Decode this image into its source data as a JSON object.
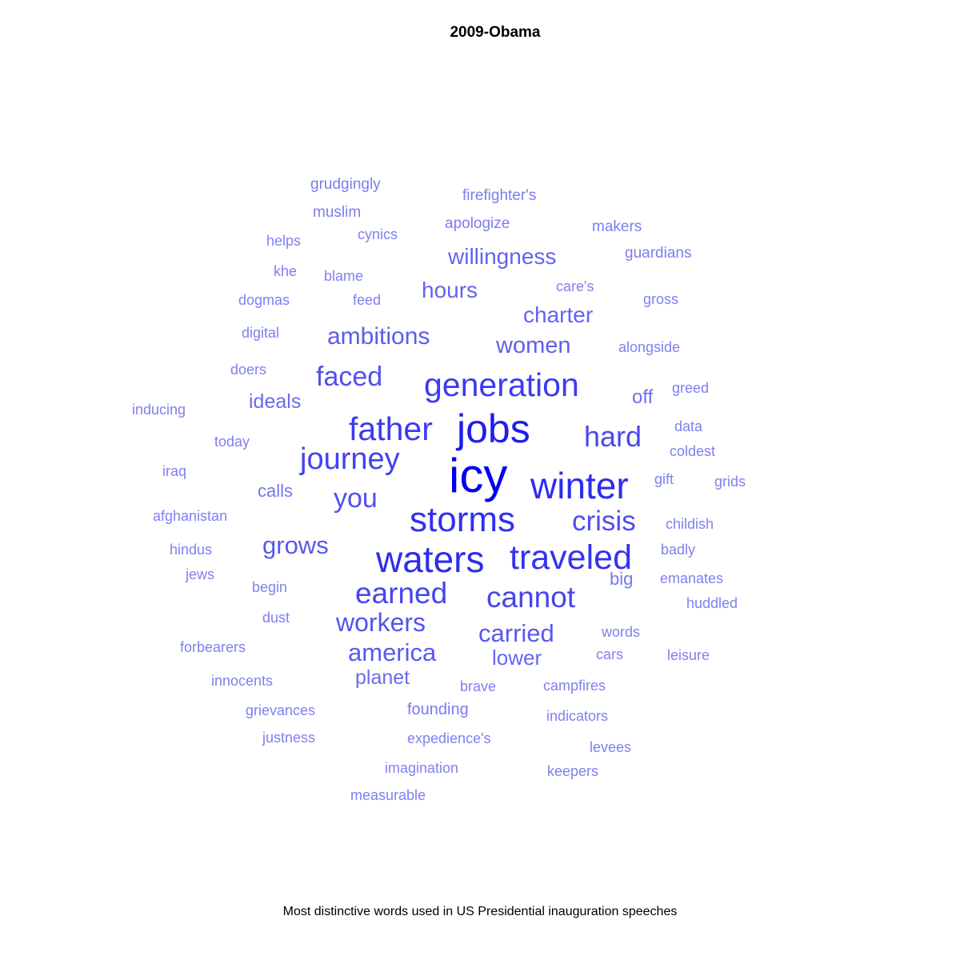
{
  "chart_data": {
    "type": "wordcloud",
    "title": "2009-Obama",
    "caption": "Most distinctive words used in US Presidential inauguration speeches",
    "color_scale": {
      "low": "#8080f0",
      "high": "#0000ee"
    },
    "words": [
      {
        "text": "icy",
        "weight": 1.0
      },
      {
        "text": "jobs",
        "weight": 0.84
      },
      {
        "text": "waters",
        "weight": 0.76
      },
      {
        "text": "winter",
        "weight": 0.76
      },
      {
        "text": "storms",
        "weight": 0.74
      },
      {
        "text": "traveled",
        "weight": 0.72
      },
      {
        "text": "father",
        "weight": 0.68
      },
      {
        "text": "generation",
        "weight": 0.68
      },
      {
        "text": "journey",
        "weight": 0.64
      },
      {
        "text": "earned",
        "weight": 0.62
      },
      {
        "text": "cannot",
        "weight": 0.62
      },
      {
        "text": "hard",
        "weight": 0.6
      },
      {
        "text": "crisis",
        "weight": 0.58
      },
      {
        "text": "faced",
        "weight": 0.56
      },
      {
        "text": "you",
        "weight": 0.56
      },
      {
        "text": "workers",
        "weight": 0.54
      },
      {
        "text": "america",
        "weight": 0.52
      },
      {
        "text": "carried",
        "weight": 0.52
      },
      {
        "text": "grows",
        "weight": 0.52
      },
      {
        "text": "ambitions",
        "weight": 0.5
      },
      {
        "text": "women",
        "weight": 0.48
      },
      {
        "text": "willingness",
        "weight": 0.46
      },
      {
        "text": "hours",
        "weight": 0.46
      },
      {
        "text": "charter",
        "weight": 0.46
      },
      {
        "text": "lower",
        "weight": 0.44
      },
      {
        "text": "ideals",
        "weight": 0.42
      },
      {
        "text": "planet",
        "weight": 0.42
      },
      {
        "text": "off",
        "weight": 0.4
      },
      {
        "text": "calls",
        "weight": 0.36
      },
      {
        "text": "big",
        "weight": 0.36
      },
      {
        "text": "founding",
        "weight": 0.34
      },
      {
        "text": "grudgingly",
        "weight": 0.32
      },
      {
        "text": "firefighter's",
        "weight": 0.32
      },
      {
        "text": "muslim",
        "weight": 0.32
      },
      {
        "text": "apologize",
        "weight": 0.32
      },
      {
        "text": "makers",
        "weight": 0.32
      },
      {
        "text": "cynics",
        "weight": 0.3
      },
      {
        "text": "helps",
        "weight": 0.3
      },
      {
        "text": "guardians",
        "weight": 0.32
      },
      {
        "text": "khe",
        "weight": 0.3
      },
      {
        "text": "blame",
        "weight": 0.3
      },
      {
        "text": "care's",
        "weight": 0.3
      },
      {
        "text": "dogmas",
        "weight": 0.3
      },
      {
        "text": "feed",
        "weight": 0.3
      },
      {
        "text": "gross",
        "weight": 0.3
      },
      {
        "text": "digital",
        "weight": 0.3
      },
      {
        "text": "alongside",
        "weight": 0.3
      },
      {
        "text": "doers",
        "weight": 0.3
      },
      {
        "text": "greed",
        "weight": 0.3
      },
      {
        "text": "inducing",
        "weight": 0.3
      },
      {
        "text": "data",
        "weight": 0.3
      },
      {
        "text": "today",
        "weight": 0.3
      },
      {
        "text": "coldest",
        "weight": 0.3
      },
      {
        "text": "iraq",
        "weight": 0.3
      },
      {
        "text": "gift",
        "weight": 0.3
      },
      {
        "text": "grids",
        "weight": 0.3
      },
      {
        "text": "afghanistan",
        "weight": 0.3
      },
      {
        "text": "childish",
        "weight": 0.3
      },
      {
        "text": "hindus",
        "weight": 0.3
      },
      {
        "text": "badly",
        "weight": 0.3
      },
      {
        "text": "jews",
        "weight": 0.3
      },
      {
        "text": "emanates",
        "weight": 0.3
      },
      {
        "text": "begin",
        "weight": 0.3
      },
      {
        "text": "huddled",
        "weight": 0.3
      },
      {
        "text": "dust",
        "weight": 0.3
      },
      {
        "text": "words",
        "weight": 0.3
      },
      {
        "text": "forbearers",
        "weight": 0.3
      },
      {
        "text": "cars",
        "weight": 0.3
      },
      {
        "text": "leisure",
        "weight": 0.3
      },
      {
        "text": "innocents",
        "weight": 0.3
      },
      {
        "text": "brave",
        "weight": 0.3
      },
      {
        "text": "campfires",
        "weight": 0.3
      },
      {
        "text": "grievances",
        "weight": 0.3
      },
      {
        "text": "indicators",
        "weight": 0.3
      },
      {
        "text": "justness",
        "weight": 0.3
      },
      {
        "text": "expedience's",
        "weight": 0.3
      },
      {
        "text": "levees",
        "weight": 0.3
      },
      {
        "text": "imagination",
        "weight": 0.3
      },
      {
        "text": "keepers",
        "weight": 0.3
      },
      {
        "text": "measurable",
        "weight": 0.3
      }
    ]
  }
}
